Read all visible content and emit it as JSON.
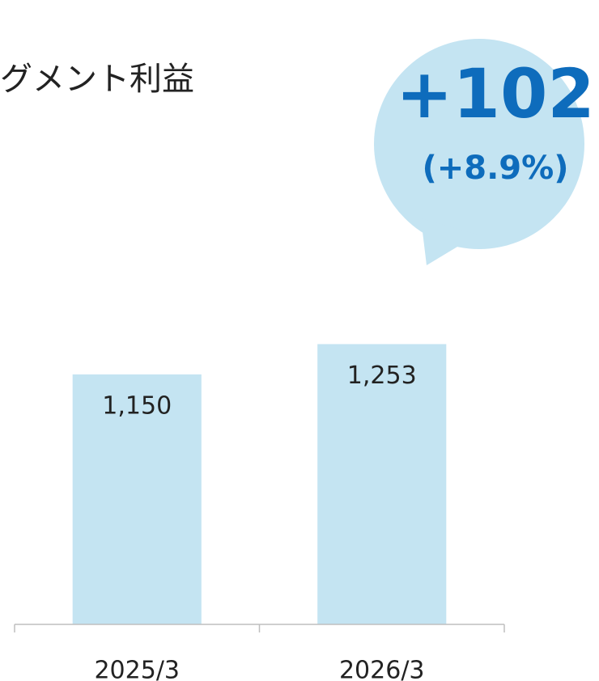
{
  "chart_data": {
    "type": "bar",
    "title": "グメント利益",
    "categories": [
      "2025/3",
      "2026/3"
    ],
    "values": [
      1150,
      1253
    ],
    "value_labels": [
      "1,150",
      "1,253"
    ],
    "color": "#c4e4f2",
    "ylim": [
      300,
      1400
    ],
    "annotations": [
      "+102",
      "(+8.9%)"
    ]
  }
}
